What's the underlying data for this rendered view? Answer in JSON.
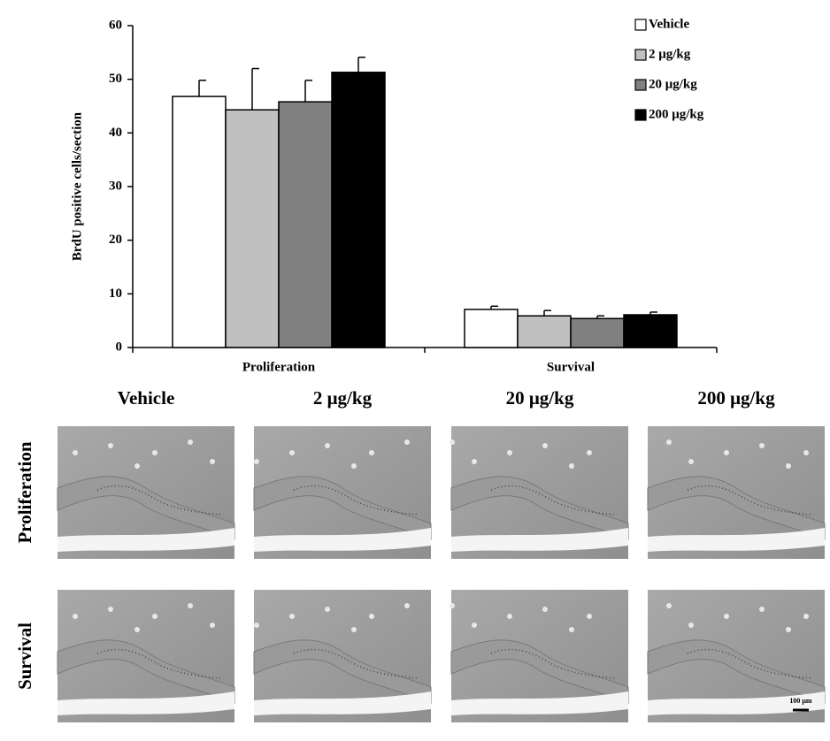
{
  "chart_data": {
    "type": "bar",
    "y_label": "BrdU positive cells/section",
    "categories": [
      "Proliferation",
      "Survival"
    ],
    "series": [
      {
        "name": "Vehicle",
        "color": "#ffffff",
        "values": [
          46.8,
          7.1
        ],
        "errors": [
          3.0,
          0.6
        ]
      },
      {
        "name": "2 μg/kg",
        "color": "#c0c0c0",
        "values": [
          44.3,
          5.9
        ],
        "errors": [
          7.7,
          1.0
        ]
      },
      {
        "name": "20 μg/kg",
        "color": "#808080",
        "values": [
          45.8,
          5.4
        ],
        "errors": [
          4.0,
          0.5
        ]
      },
      {
        "name": "200 μg/kg",
        "color": "#000000",
        "values": [
          51.3,
          6.1
        ],
        "errors": [
          2.8,
          0.5
        ]
      }
    ],
    "ylim": [
      0,
      60
    ],
    "yticks": [
      0,
      10,
      20,
      30,
      40,
      50,
      60
    ],
    "legend": "upper right"
  },
  "panels": {
    "columns": [
      "Vehicle",
      "2 μg/kg",
      "20 μg/kg",
      "200 μg/kg"
    ],
    "rows": [
      "Proliferation",
      "Survival"
    ],
    "scale_bar": "100 μm"
  }
}
